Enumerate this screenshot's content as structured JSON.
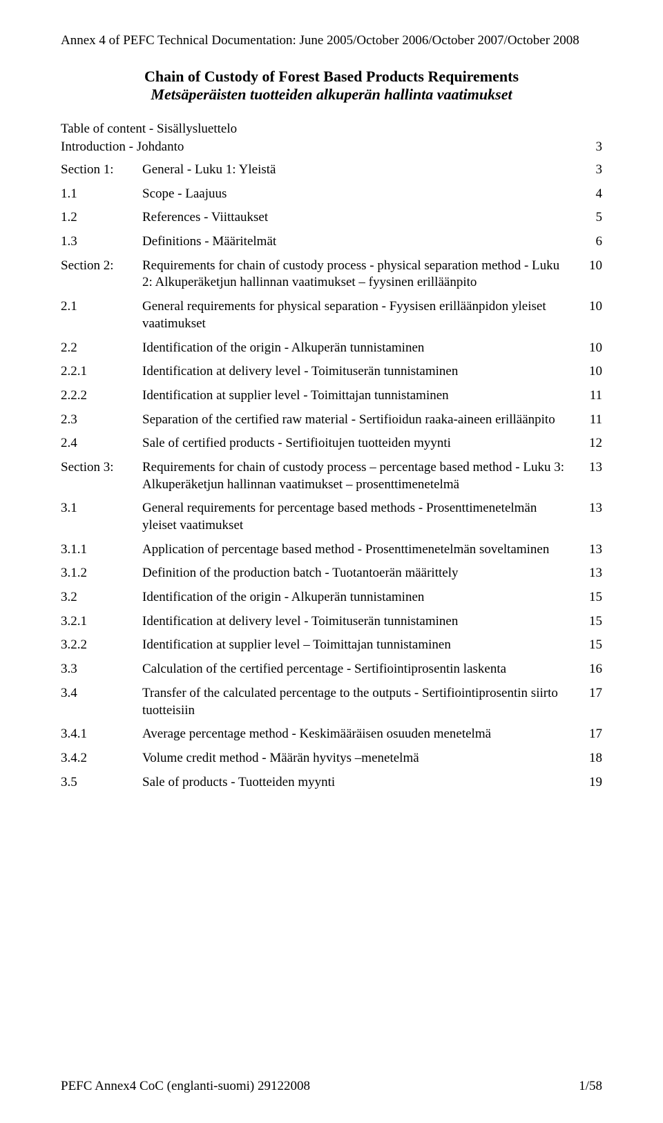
{
  "colors": {
    "text": "#000000",
    "background": "#ffffff"
  },
  "typography": {
    "family": "Times New Roman",
    "body_size_pt": 14,
    "title_size_pt": 16
  },
  "header": "Annex 4 of PEFC Technical Documentation: June 2005/October 2006/October 2007/October 2008",
  "title": {
    "en": "Chain of Custody of Forest Based Products Requirements",
    "fi": "Metsäperäisten tuotteiden alkuperän hallinta vaatimukset"
  },
  "toc_heading": "Table of content - Sisällysluettelo",
  "intro": {
    "label": "Introduction - Johdanto",
    "page": "3"
  },
  "rows": [
    {
      "n": "Section 1:",
      "t": "General  - Luku 1: Yleistä",
      "p": "3",
      "gap": true
    },
    {
      "n": "1.1",
      "t": "Scope  -  Laajuus",
      "p": "4",
      "gap": true
    },
    {
      "n": "1.2",
      "t": "References  -  Viittaukset",
      "p": "5",
      "gap": true
    },
    {
      "n": "1.3",
      "t": "Definitions - Määritelmät",
      "p": "6",
      "gap": true
    },
    {
      "n": "Section 2:",
      "t": "Requirements for chain of custody process - physical separation method  - Luku 2: Alkuperäketjun hallinnan vaatimukset – fyysinen erilläänpito",
      "p": "10",
      "gap": true
    },
    {
      "n": "2.1",
      "t": "General requirements for physical separation  -  Fyysisen erilläänpidon yleiset vaatimukset",
      "p": "10",
      "gap": true
    },
    {
      "n": "2.2",
      "t": "Identification of the origin  -  Alkuperän tunnistaminen",
      "p": "10",
      "gap": true
    },
    {
      "n": "2.2.1",
      "t": "Identification at delivery level  -  Toimituserän tunnistaminen",
      "p": "10",
      "gap": true
    },
    {
      "n": "2.2.2",
      "t": "Identification at supplier level  -  Toimittajan tunnistaminen",
      "p": "11",
      "gap": true
    },
    {
      "n": "2.3",
      "t": "Separation of the certified raw material  -  Sertifioidun raaka-aineen erilläänpito",
      "p": "11",
      "gap": true
    },
    {
      "n": "2.4",
      "t": "Sale of certified products  -  Sertifioitujen tuotteiden myynti",
      "p": "12",
      "gap": true
    },
    {
      "n": "Section 3:",
      "t": "Requirements for chain of custody process – percentage based method  - Luku 3: Alkuperäketjun hallinnan vaatimukset – prosenttimenetelmä",
      "p": "13",
      "gap": true
    },
    {
      "n": "3.1",
      "t": "General requirements for percentage based methods  -  Prosenttimenetelmän yleiset vaatimukset",
      "p": "13",
      "gap": true
    },
    {
      "n": "3.1.1",
      "t": "Application of percentage based method   -  Prosenttimenetelmän soveltaminen",
      "p": "13",
      "gap": true
    },
    {
      "n": "3.1.2",
      "t": "Definition of the production batch  -  Tuotantoerän määrittely",
      "p": "13",
      "gap": true
    },
    {
      "n": "3.2",
      "t": "Identification of the origin  -  Alkuperän tunnistaminen",
      "p": "15",
      "gap": true
    },
    {
      "n": "3.2.1",
      "t": "Identification at delivery level  -  Toimituserän tunnistaminen",
      "p": "15",
      "gap": true
    },
    {
      "n": "3.2.2",
      "t": "Identification at supplier level – Toimittajan tunnistaminen",
      "p": "15",
      "gap": true
    },
    {
      "n": "3.3",
      "t": "Calculation of the certified percentage  -  Sertifiointiprosentin laskenta",
      "p": "16",
      "gap": true
    },
    {
      "n": "3.4",
      "t": "Transfer of the calculated percentage to the outputs  -  Sertifiointiprosentin siirto tuotteisiin",
      "p": "17",
      "gap": true
    },
    {
      "n": "3.4.1",
      "t": "Average percentage method -  Keskimääräisen osuuden menetelmä",
      "p": "17",
      "gap": true
    },
    {
      "n": "3.4.2",
      "t": "Volume credit method  -  Määrän hyvitys –menetelmä",
      "p": "18",
      "gap": true
    },
    {
      "n": "3.5",
      "t": "Sale of products  -  Tuotteiden myynti",
      "p": "19",
      "gap": true
    }
  ],
  "footer": {
    "left": "PEFC Annex4 CoC (englanti-suomi) 29122008",
    "right": "1/58"
  }
}
